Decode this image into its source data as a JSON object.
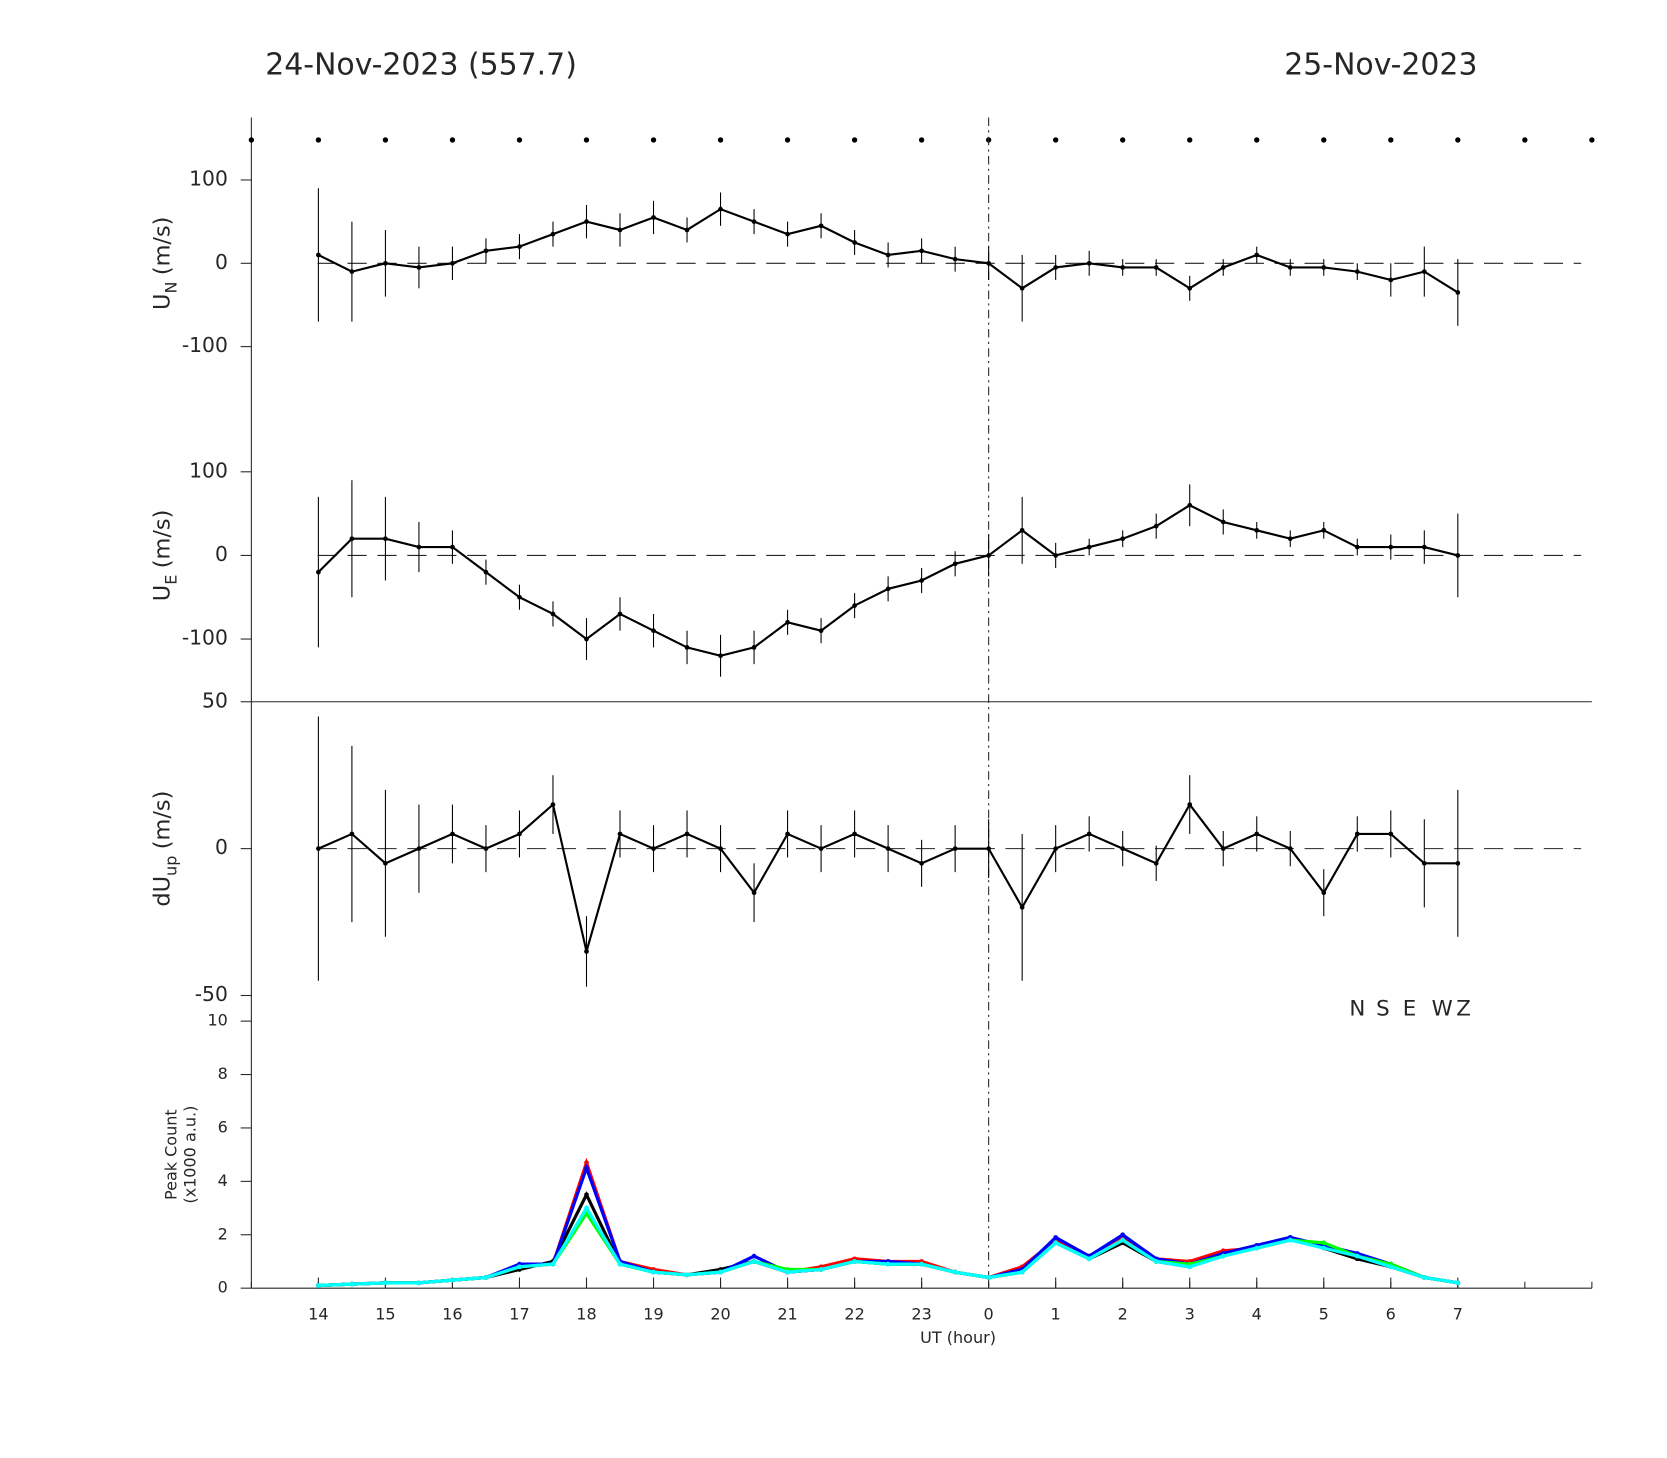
{
  "titles": [
    "24-Nov-2023 (557.7)",
    "25-Nov-2023"
  ],
  "chart_data": [
    {
      "type": "line",
      "ylabel": "U",
      "ylabel_sub": "N",
      "ylabel_unit": "(m/s)",
      "zero_line": true,
      "xlim": [
        13,
        33
      ],
      "ylim": [
        -175,
        175
      ],
      "yticks": [
        -100,
        0,
        100
      ],
      "x": [
        14,
        14.5,
        15,
        15.5,
        16,
        16.5,
        17,
        17.5,
        18,
        18.5,
        19,
        19.5,
        20,
        20.5,
        21,
        21.5,
        22,
        22.5,
        23,
        23.5,
        24,
        24.5,
        25,
        25.5,
        26,
        26.5,
        27,
        27.5,
        28,
        28.5,
        29,
        29.5,
        30,
        30.5,
        31
      ],
      "series": [
        {
          "name": "U_N",
          "color": "#000000",
          "values": [
            10,
            -10,
            0,
            -5,
            0,
            15,
            20,
            35,
            50,
            40,
            55,
            40,
            65,
            50,
            35,
            45,
            25,
            10,
            15,
            5,
            0,
            -30,
            -5,
            0,
            -5,
            -5,
            -30,
            -5,
            10,
            -5,
            -5,
            -10,
            -20,
            -10,
            -35
          ],
          "errors": [
            80,
            60,
            40,
            25,
            20,
            15,
            15,
            15,
            20,
            20,
            20,
            15,
            20,
            15,
            15,
            15,
            15,
            15,
            15,
            15,
            20,
            40,
            15,
            15,
            10,
            10,
            15,
            10,
            10,
            10,
            10,
            10,
            20,
            30,
            40
          ]
        }
      ]
    },
    {
      "type": "line",
      "ylabel": "U",
      "ylabel_sub": "E",
      "ylabel_unit": "(m/s)",
      "zero_line": true,
      "xlim": [
        13,
        33
      ],
      "ylim": [
        -175,
        175
      ],
      "yticks": [
        -100,
        0,
        100
      ],
      "x": [
        14,
        14.5,
        15,
        15.5,
        16,
        16.5,
        17,
        17.5,
        18,
        18.5,
        19,
        19.5,
        20,
        20.5,
        21,
        21.5,
        22,
        22.5,
        23,
        23.5,
        24,
        24.5,
        25,
        25.5,
        26,
        26.5,
        27,
        27.5,
        28,
        28.5,
        29,
        29.5,
        30,
        30.5,
        31
      ],
      "series": [
        {
          "name": "U_E",
          "color": "#000000",
          "values": [
            -20,
            20,
            20,
            10,
            10,
            -20,
            -50,
            -70,
            -100,
            -70,
            -90,
            -110,
            -120,
            -110,
            -80,
            -90,
            -60,
            -40,
            -30,
            -10,
            0,
            30,
            0,
            10,
            20,
            35,
            60,
            40,
            30,
            20,
            30,
            10,
            10,
            10,
            0
          ],
          "errors": [
            90,
            70,
            50,
            30,
            20,
            15,
            15,
            15,
            25,
            20,
            20,
            20,
            25,
            20,
            15,
            15,
            15,
            15,
            15,
            15,
            25,
            40,
            15,
            10,
            10,
            15,
            25,
            15,
            10,
            10,
            10,
            10,
            15,
            20,
            50
          ]
        }
      ]
    },
    {
      "type": "line",
      "ylabel": "dU",
      "ylabel_sub": "up",
      "ylabel_unit": "(m/s)",
      "zero_line": true,
      "xlim": [
        13,
        33
      ],
      "ylim": [
        -50,
        50
      ],
      "yticks": [
        -50,
        0,
        50
      ],
      "x": [
        14,
        14.5,
        15,
        15.5,
        16,
        16.5,
        17,
        17.5,
        18,
        18.5,
        19,
        19.5,
        20,
        20.5,
        21,
        21.5,
        22,
        22.5,
        23,
        23.5,
        24,
        24.5,
        25,
        25.5,
        26,
        26.5,
        27,
        27.5,
        28,
        28.5,
        29,
        29.5,
        30,
        30.5,
        31
      ],
      "series": [
        {
          "name": "dU_up",
          "color": "#000000",
          "values": [
            0,
            5,
            -5,
            0,
            5,
            0,
            5,
            15,
            -35,
            5,
            0,
            5,
            0,
            -15,
            5,
            0,
            5,
            0,
            -5,
            0,
            0,
            -20,
            0,
            5,
            0,
            -5,
            15,
            0,
            5,
            0,
            -15,
            5,
            5,
            -5,
            -5
          ],
          "errors": [
            45,
            30,
            25,
            15,
            10,
            8,
            8,
            10,
            12,
            8,
            8,
            8,
            8,
            10,
            8,
            8,
            8,
            8,
            8,
            8,
            10,
            25,
            8,
            6,
            6,
            6,
            10,
            6,
            6,
            6,
            8,
            6,
            8,
            15,
            25
          ]
        }
      ]
    },
    {
      "type": "line",
      "ylabel": "Peak Count",
      "ylabel_unit": "(x1000 a.u.)",
      "xlabel": "UT (hour)",
      "legend": "upper right",
      "xlim": [
        13,
        33
      ],
      "ylim": [
        0,
        10
      ],
      "yticks": [
        0,
        2,
        4,
        6,
        8,
        10
      ],
      "xticks": [
        14,
        15,
        16,
        17,
        18,
        19,
        20,
        21,
        22,
        23,
        {
          "value": 24,
          "label": "0"
        },
        {
          "value": 25,
          "label": "1"
        },
        {
          "value": 26,
          "label": "2"
        },
        {
          "value": 27,
          "label": "3"
        },
        {
          "value": 28,
          "label": "4"
        },
        {
          "value": 29,
          "label": "5"
        },
        {
          "value": 30,
          "label": "6"
        },
        {
          "value": 31,
          "label": "7"
        }
      ],
      "x": [
        14,
        14.5,
        15,
        15.5,
        16,
        16.5,
        17,
        17.5,
        18,
        18.5,
        19,
        19.5,
        20,
        20.5,
        21,
        21.5,
        22,
        22.5,
        23,
        23.5,
        24,
        24.5,
        25,
        25.5,
        26,
        26.5,
        27,
        27.5,
        28,
        28.5,
        29,
        29.5,
        30,
        30.5,
        31
      ],
      "series": [
        {
          "name": "N",
          "color": "#000000",
          "values": [
            0.1,
            0.15,
            0.2,
            0.2,
            0.3,
            0.4,
            0.7,
            1.0,
            3.5,
            0.9,
            0.6,
            0.5,
            0.7,
            1.0,
            0.6,
            0.7,
            1.0,
            0.9,
            0.9,
            0.6,
            0.4,
            0.6,
            1.7,
            1.1,
            1.7,
            1.0,
            0.8,
            1.3,
            1.6,
            1.9,
            1.5,
            1.1,
            0.8,
            0.4,
            0.2
          ]
        },
        {
          "name": "S",
          "color": "#ff0000",
          "values": [
            0.1,
            0.15,
            0.2,
            0.2,
            0.3,
            0.4,
            0.8,
            0.9,
            4.7,
            1.0,
            0.7,
            0.5,
            0.6,
            1.0,
            0.6,
            0.8,
            1.1,
            1.0,
            1.0,
            0.6,
            0.4,
            0.8,
            1.8,
            1.2,
            1.9,
            1.1,
            1.0,
            1.4,
            1.5,
            1.8,
            1.6,
            1.2,
            0.9,
            0.4,
            0.2
          ]
        },
        {
          "name": "E",
          "color": "#0000ff",
          "values": [
            0.1,
            0.15,
            0.2,
            0.2,
            0.3,
            0.4,
            0.9,
            0.9,
            4.5,
            1.0,
            0.6,
            0.5,
            0.6,
            1.2,
            0.6,
            0.7,
            1.0,
            1.0,
            0.9,
            0.6,
            0.4,
            0.7,
            1.9,
            1.2,
            2.0,
            1.1,
            0.9,
            1.3,
            1.6,
            1.9,
            1.6,
            1.3,
            0.9,
            0.4,
            0.2
          ]
        },
        {
          "name": "W",
          "color": "#00ff00",
          "values": [
            0.1,
            0.15,
            0.2,
            0.2,
            0.3,
            0.4,
            0.8,
            0.9,
            2.8,
            0.9,
            0.6,
            0.5,
            0.6,
            1.0,
            0.7,
            0.7,
            1.0,
            0.9,
            0.9,
            0.6,
            0.4,
            0.6,
            1.7,
            1.1,
            1.8,
            1.0,
            0.9,
            1.2,
            1.5,
            1.8,
            1.7,
            1.2,
            0.9,
            0.4,
            0.2
          ]
        },
        {
          "name": "Z",
          "color": "#00ffff",
          "values": [
            0.1,
            0.15,
            0.2,
            0.2,
            0.3,
            0.4,
            0.8,
            0.9,
            3.0,
            0.9,
            0.6,
            0.5,
            0.6,
            1.0,
            0.6,
            0.7,
            1.0,
            0.9,
            0.9,
            0.6,
            0.4,
            0.6,
            1.7,
            1.1,
            1.8,
            1.0,
            0.8,
            1.2,
            1.5,
            1.8,
            1.5,
            1.2,
            0.8,
            0.4,
            0.2
          ]
        }
      ]
    }
  ]
}
